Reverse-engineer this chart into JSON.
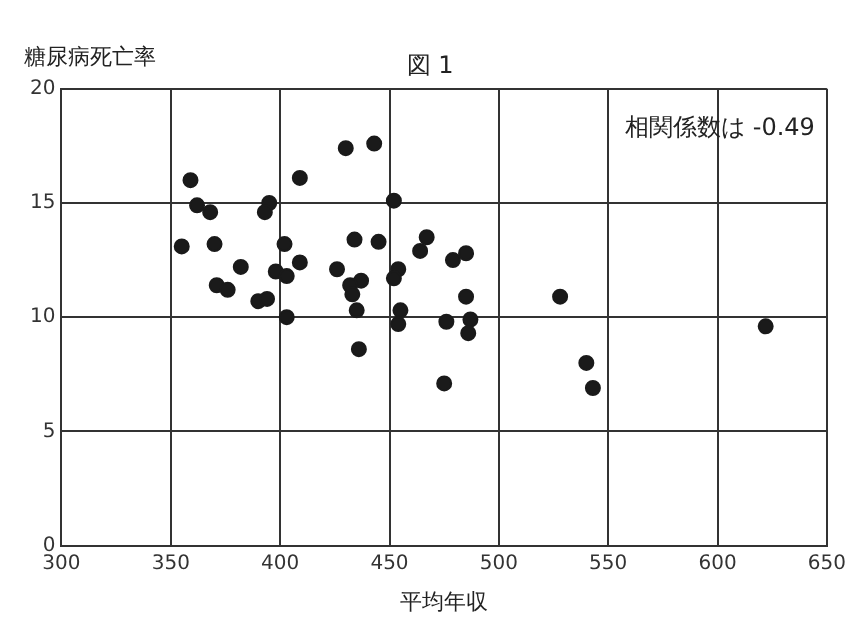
{
  "chart_data": {
    "type": "scatter",
    "title": "図 1",
    "xlabel": "平均年収",
    "ylabel": "糖尿病死亡率",
    "annotations": [
      "相関係数は -0.49"
    ],
    "xlim": [
      300,
      650
    ],
    "xticks": [
      300,
      350,
      400,
      450,
      500,
      550,
      600,
      650
    ],
    "ylim": [
      0,
      20
    ],
    "yticks": [
      0,
      5,
      10,
      15,
      20
    ],
    "grid": true,
    "marker": "circle",
    "series": [
      {
        "color": "#1a1a1a",
        "x": [
          359,
          362,
          368,
          355,
          370,
          382,
          371,
          376,
          395,
          393,
          409,
          430,
          443,
          402,
          409,
          398,
          403,
          390,
          394,
          403,
          434,
          445,
          426,
          437,
          432,
          433,
          435,
          436,
          452,
          454,
          452,
          455,
          454,
          467,
          464,
          479,
          485,
          485,
          476,
          487,
          486,
          475,
          528,
          540,
          543,
          622
        ],
        "values": [
          16.0,
          14.9,
          14.6,
          13.1,
          13.2,
          12.2,
          11.4,
          11.2,
          15.0,
          14.6,
          16.1,
          17.4,
          17.6,
          13.2,
          12.4,
          12.0,
          11.8,
          10.7,
          10.8,
          10.0,
          13.4,
          13.3,
          12.1,
          11.6,
          11.4,
          11.0,
          10.3,
          8.6,
          15.1,
          12.1,
          11.7,
          10.3,
          9.7,
          13.5,
          12.9,
          12.5,
          12.8,
          10.9,
          9.8,
          9.9,
          9.3,
          7.1,
          10.9,
          8.0,
          6.9,
          9.6
        ]
      }
    ]
  }
}
